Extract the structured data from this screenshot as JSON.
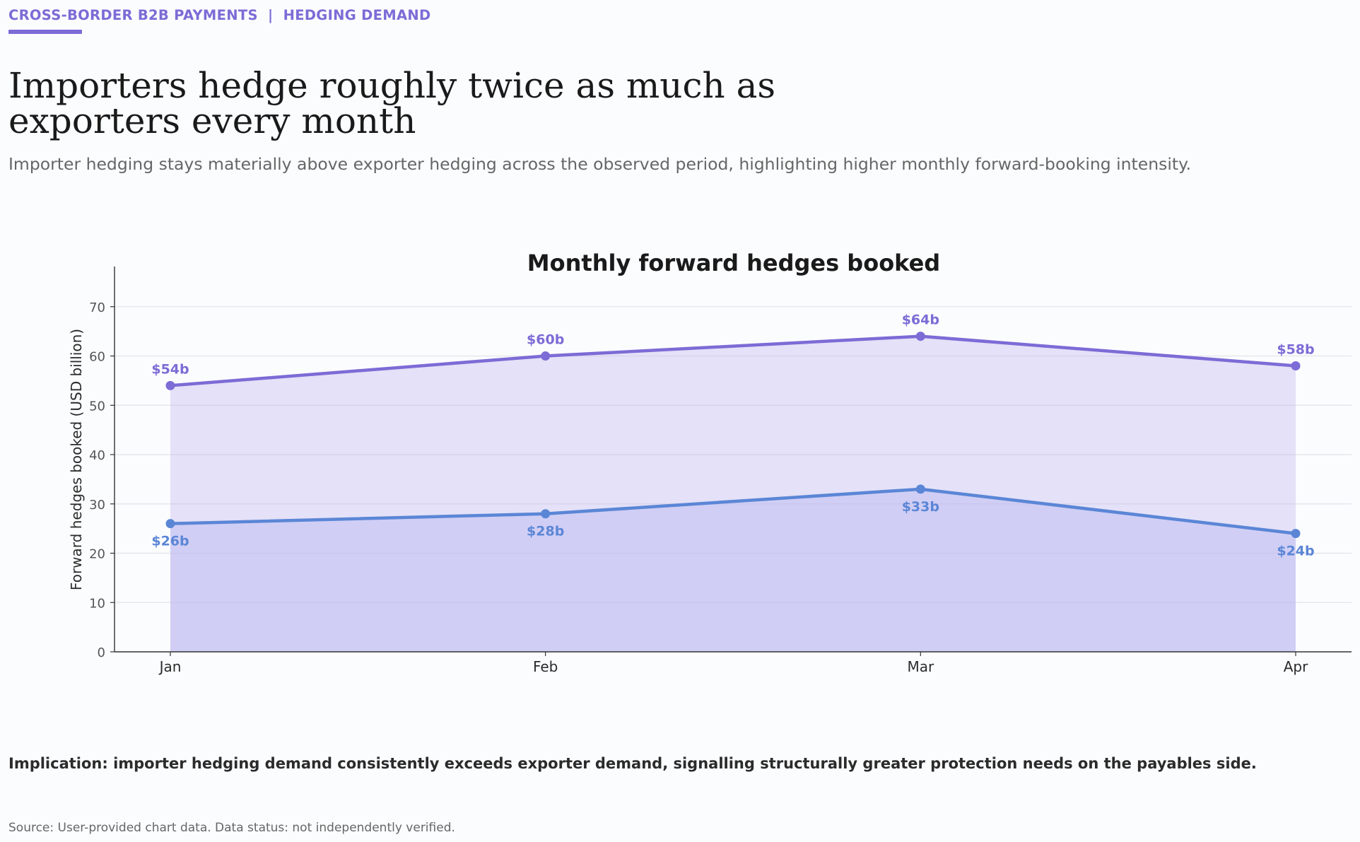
{
  "header": {
    "kicker": "CROSS-BORDER B2B PAYMENTS  |  HEDGING DEMAND",
    "headline": "Importers hedge roughly twice as much as exporters every month",
    "subtitle": "Importer hedging stays materially above exporter hedging across the observed period, highlighting higher monthly forward-booking intensity."
  },
  "chart_data": {
    "type": "area",
    "title": "Monthly forward hedges booked",
    "xlabel": "",
    "ylabel": "Forward hedges booked (USD billion)",
    "categories": [
      "Jan",
      "Feb",
      "Mar",
      "Apr"
    ],
    "ylim": [
      0,
      78
    ],
    "yticks": [
      0,
      10,
      20,
      30,
      40,
      50,
      60,
      70
    ],
    "grid": true,
    "legend": "none",
    "series": [
      {
        "values": [
          54,
          60,
          64,
          58
        ],
        "labels": [
          "$54b",
          "$60b",
          "$64b",
          "$58b"
        ],
        "color": "#7d6bd6",
        "label_position": "above"
      },
      {
        "values": [
          26,
          28,
          33,
          24
        ],
        "labels": [
          "$26b",
          "$28b",
          "$33b",
          "$24b"
        ],
        "color": "#5b86d6",
        "label_position": "below"
      }
    ]
  },
  "footer": {
    "implication": "Implication: importer hedging demand consistently exceeds exporter demand, signalling structurally greater protection needs on the payables side.",
    "source": "Source: User-provided chart data. Data status: not independently verified."
  }
}
